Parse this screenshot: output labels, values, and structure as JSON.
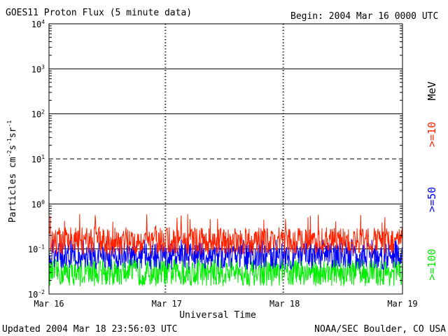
{
  "header": {
    "title": "GOES11 Proton Flux (5 minute data)",
    "begin": "Begin: 2004 Mar 16 0000 UTC"
  },
  "footer": {
    "updated": "Updated 2004 Mar 18 23:56:03 UTC",
    "credit": "NOAA/SEC Boulder, CO USA"
  },
  "chart_data": {
    "type": "line",
    "title": "GOES11 Proton Flux (5 minute data)",
    "xlabel": "Universal Time",
    "ylabel": "Particles cm-2s-1sr-1",
    "y_scale": "log",
    "ylim": [
      0.01,
      10000
    ],
    "y_ticks": [
      {
        "base": "10",
        "exp": "-2",
        "value": 0.01
      },
      {
        "base": "10",
        "exp": "-1",
        "value": 0.1
      },
      {
        "base": "10",
        "exp": "0",
        "value": 1
      },
      {
        "base": "10",
        "exp": "1",
        "value": 10
      },
      {
        "base": "10",
        "exp": "2",
        "value": 100
      },
      {
        "base": "10",
        "exp": "3",
        "value": 1000
      },
      {
        "base": "10",
        "exp": "4",
        "value": 10000
      }
    ],
    "x_ticks": [
      "Mar 16",
      "Mar 17",
      "Mar 18",
      "Mar 19"
    ],
    "xlim_days": [
      0,
      3
    ],
    "grid": "horizontal solid at decades, dashed at 10",
    "energy_label": "MeV",
    "series": [
      {
        "name": ">=10",
        "color": "#ff2200",
        "typical_flux": 0.15,
        "range": [
          0.07,
          0.8
        ]
      },
      {
        "name": ">=50",
        "color": "#0000ff",
        "typical_flux": 0.07,
        "range": [
          0.03,
          0.16
        ]
      },
      {
        "name": ">=100",
        "color": "#00ee00",
        "typical_flux": 0.03,
        "range": [
          0.012,
          0.06
        ]
      }
    ]
  }
}
